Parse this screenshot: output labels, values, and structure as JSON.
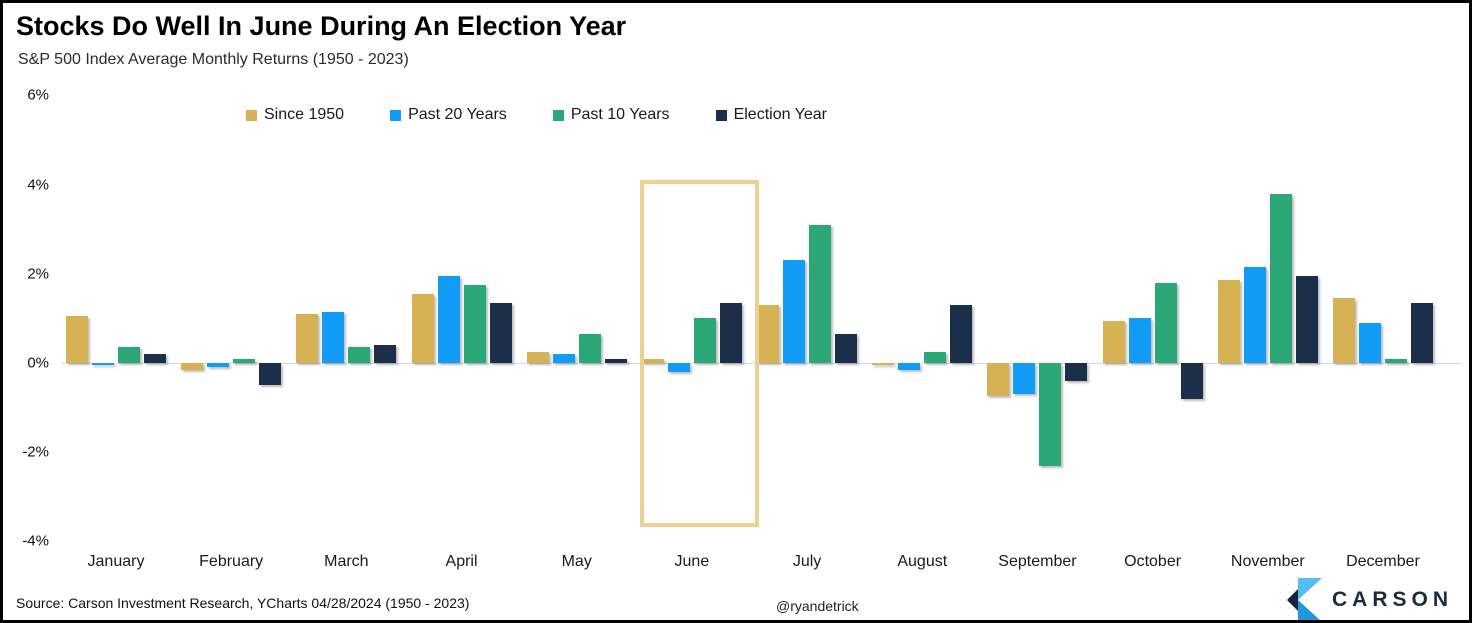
{
  "header": {
    "title": "Stocks Do Well In June During An Election Year",
    "subtitle": "S&P 500 Index Average Monthly Returns (1950 - 2023)"
  },
  "legend": [
    {
      "label": "Since 1950",
      "color": "#D6B254"
    },
    {
      "label": "Past 20 Years",
      "color": "#129BF7"
    },
    {
      "label": "Past 10 Years",
      "color": "#2CA878"
    },
    {
      "label": "Election Year",
      "color": "#1B2E4A"
    }
  ],
  "chart_data": {
    "type": "bar",
    "title": "Stocks Do Well In June During An Election Year",
    "subtitle": "S&P 500 Index Average Monthly Returns (1950 - 2023)",
    "categories": [
      "January",
      "February",
      "March",
      "April",
      "May",
      "June",
      "July",
      "August",
      "September",
      "October",
      "November",
      "December"
    ],
    "series": [
      {
        "name": "Since 1950",
        "color": "#D6B254",
        "values": [
          1.05,
          -0.15,
          1.1,
          1.55,
          0.25,
          0.1,
          1.3,
          -0.05,
          -0.75,
          0.95,
          1.85,
          1.45
        ]
      },
      {
        "name": "Past 20 Years",
        "color": "#129BF7",
        "values": [
          -0.05,
          -0.1,
          1.15,
          1.95,
          0.2,
          -0.2,
          2.3,
          -0.15,
          -0.7,
          1.0,
          2.15,
          0.9
        ]
      },
      {
        "name": "Past 10 Years",
        "color": "#2CA878",
        "values": [
          0.35,
          0.1,
          0.35,
          1.75,
          0.65,
          1.0,
          3.1,
          0.25,
          -2.3,
          1.8,
          3.8,
          0.1
        ]
      },
      {
        "name": "Election Year",
        "color": "#1B2E4A",
        "values": [
          0.2,
          -0.5,
          0.4,
          1.35,
          0.1,
          1.35,
          0.65,
          1.3,
          -0.4,
          -0.8,
          1.95,
          1.35
        ]
      }
    ],
    "ylim": [
      -4,
      6
    ],
    "yticks": {
      "values": [
        6,
        4,
        2,
        0,
        -2,
        -4
      ],
      "labels": [
        "6%",
        "4%",
        "2%",
        "0%",
        "-2%",
        "-4%"
      ]
    },
    "grid": "off",
    "legend_position": "top",
    "highlight": {
      "month": "June",
      "border_color": "#EBD294",
      "top_value": 4.1,
      "bottom_value": -3.5
    }
  },
  "footer": {
    "source": "Source: Carson Investment Research, YCharts 04/28/2024 (1950 - 2023)",
    "handle": "@ryandetrick",
    "brand": "CARSON"
  },
  "colors": {
    "axis_line": "#D9D9D9",
    "logo_light_blue": "#56BDF1",
    "logo_mid_blue": "#2196E0",
    "logo_navy": "#15253C"
  }
}
